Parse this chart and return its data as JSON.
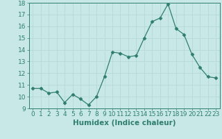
{
  "x": [
    0,
    1,
    2,
    3,
    4,
    5,
    6,
    7,
    8,
    9,
    10,
    11,
    12,
    13,
    14,
    15,
    16,
    17,
    18,
    19,
    20,
    21,
    22,
    23
  ],
  "y": [
    10.7,
    10.7,
    10.3,
    10.4,
    9.5,
    10.2,
    9.8,
    9.3,
    10.0,
    11.7,
    13.8,
    13.7,
    13.4,
    13.5,
    15.0,
    16.4,
    16.7,
    17.9,
    15.8,
    15.3,
    13.6,
    12.5,
    11.7,
    11.6
  ],
  "line_color": "#2e7d6e",
  "marker": "D",
  "marker_size": 2.5,
  "bg_color": "#c8e8e8",
  "grid_color": "#b0d8d0",
  "xlabel": "Humidex (Indice chaleur)",
  "xlim": [
    -0.5,
    23.5
  ],
  "ylim": [
    9,
    18
  ],
  "yticks": [
    9,
    10,
    11,
    12,
    13,
    14,
    15,
    16,
    17,
    18
  ],
  "xticks": [
    0,
    1,
    2,
    3,
    4,
    5,
    6,
    7,
    8,
    9,
    10,
    11,
    12,
    13,
    14,
    15,
    16,
    17,
    18,
    19,
    20,
    21,
    22,
    23
  ],
  "xtick_labels": [
    "0",
    "1",
    "2",
    "3",
    "4",
    "5",
    "6",
    "7",
    "8",
    "9",
    "10",
    "11",
    "12",
    "13",
    "14",
    "15",
    "16",
    "17",
    "18",
    "19",
    "20",
    "21",
    "22",
    "23"
  ],
  "tick_font_size": 6.5,
  "label_font_size": 7.5
}
